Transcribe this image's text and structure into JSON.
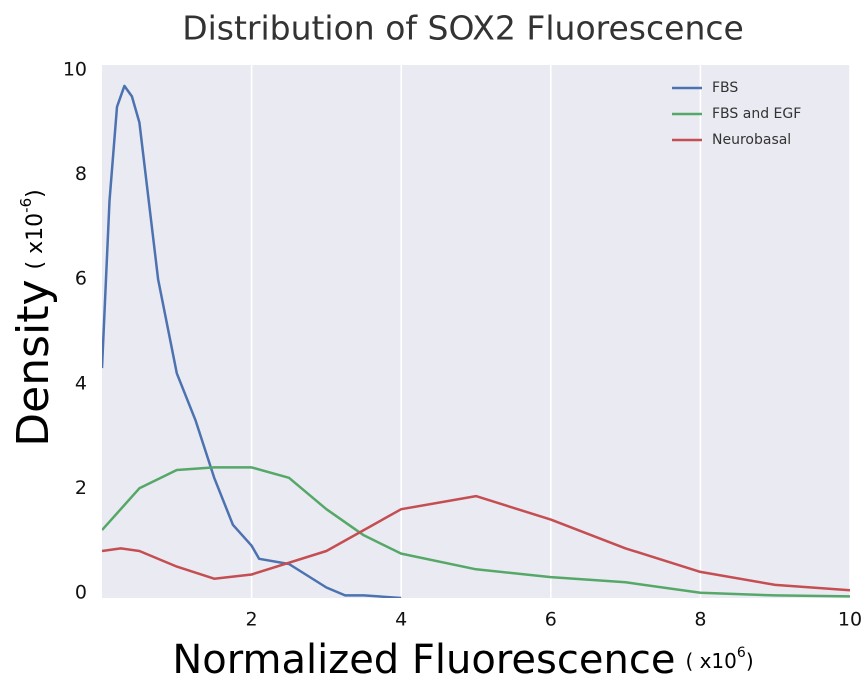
{
  "chart_data": {
    "type": "line",
    "title": "Distribution of SOX2 Fluorescence",
    "x_label": {
      "text": "Normalized Fluorescence",
      "unit": "( x10",
      "exponent": "6",
      "close": ")"
    },
    "y_label": {
      "text": "Density",
      "unit": "( x10",
      "exponent": "-6",
      "close": ")"
    },
    "xlim": [
      0,
      10
    ],
    "ylim": [
      -0.1,
      10.1
    ],
    "xticks": [
      2,
      4,
      6,
      8,
      10
    ],
    "yticks": [
      0,
      2,
      4,
      6,
      8,
      10
    ],
    "grid": "x",
    "legend": "upper right",
    "series": [
      {
        "name": "FBS",
        "color": "#4c72b0",
        "x": [
          0,
          0.1,
          0.2,
          0.3,
          0.4,
          0.5,
          0.75,
          1.0,
          1.25,
          1.5,
          1.75,
          2.0,
          2.1,
          2.5,
          3.0,
          3.25,
          3.5,
          4.0
        ],
        "values": [
          4.3,
          7.5,
          9.3,
          9.7,
          9.5,
          9.0,
          6.0,
          4.2,
          3.3,
          2.2,
          1.3,
          0.9,
          0.65,
          0.55,
          0.1,
          -0.05,
          -0.05,
          -0.1
        ]
      },
      {
        "name": "FBS and EGF",
        "color": "#55a868",
        "x": [
          0,
          0.5,
          1.0,
          1.5,
          2.0,
          2.5,
          3.0,
          3.5,
          4.0,
          5.0,
          6.0,
          7.0,
          8.0,
          9.0,
          10.0
        ],
        "values": [
          1.2,
          2.0,
          2.35,
          2.4,
          2.4,
          2.2,
          1.6,
          1.1,
          0.75,
          0.45,
          0.3,
          0.2,
          0.0,
          -0.05,
          -0.07
        ]
      },
      {
        "name": "Neurobasal",
        "color": "#c44e52",
        "x": [
          0,
          0.25,
          0.5,
          1.0,
          1.5,
          2.0,
          3.0,
          4.0,
          5.0,
          6.0,
          7.0,
          8.0,
          9.0,
          10.0
        ],
        "values": [
          0.8,
          0.85,
          0.8,
          0.5,
          0.27,
          0.35,
          0.8,
          1.6,
          1.85,
          1.4,
          0.85,
          0.4,
          0.15,
          0.05
        ]
      }
    ]
  }
}
